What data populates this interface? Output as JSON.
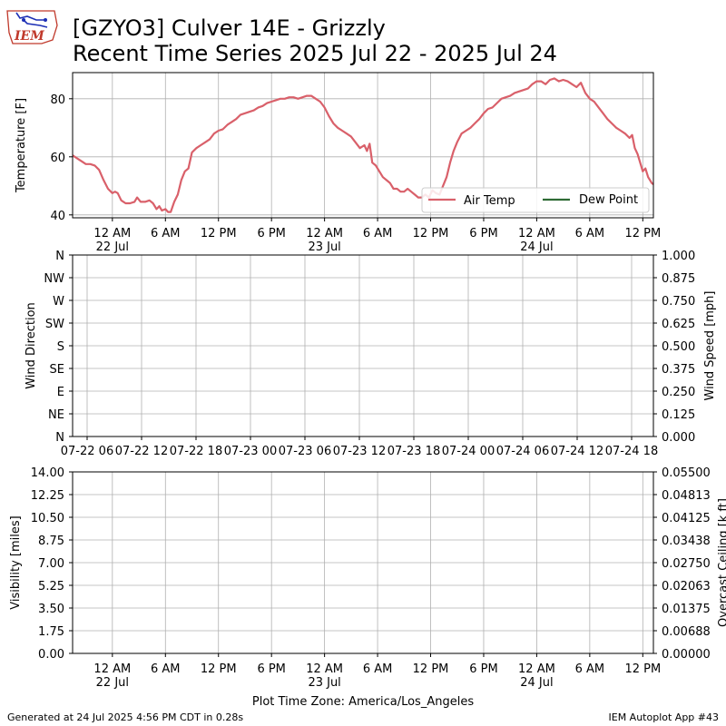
{
  "header": {
    "logo_text": "IEM",
    "title_line1": "[GZYO3] Culver 14E - Grizzly",
    "title_line2": "Recent Time Series 2025 Jul 22 - 2025 Jul 24"
  },
  "footer": {
    "generated": "Generated at 24 Jul 2025 4:56 PM CDT in 0.28s",
    "app": "IEM Autoplot App #43",
    "xlabel": "Plot Time Zone: America/Los_Angeles"
  },
  "colors": {
    "air_temp": "#d9606a",
    "dew_point": "#2e6b34",
    "ceiling_label": "#008000"
  },
  "chart_data": [
    {
      "type": "line",
      "panel": "temperature",
      "ylabel": "Temperature [F]",
      "ylim": [
        39,
        89
      ],
      "yticks": [
        40,
        60,
        80
      ],
      "xlim_hours": [
        -4.5,
        61.2
      ],
      "x_tick_labels": [
        {
          "hour": 0,
          "line1": "12 AM",
          "line2": "22 Jul"
        },
        {
          "hour": 6,
          "line1": "6 AM",
          "line2": ""
        },
        {
          "hour": 12,
          "line1": "12 PM",
          "line2": ""
        },
        {
          "hour": 18,
          "line1": "6 PM",
          "line2": ""
        },
        {
          "hour": 24,
          "line1": "12 AM",
          "line2": "23 Jul"
        },
        {
          "hour": 30,
          "line1": "6 AM",
          "line2": ""
        },
        {
          "hour": 36,
          "line1": "12 PM",
          "line2": ""
        },
        {
          "hour": 42,
          "line1": "6 PM",
          "line2": ""
        },
        {
          "hour": 48,
          "line1": "12 AM",
          "line2": "24 Jul"
        },
        {
          "hour": 54,
          "line1": "6 AM",
          "line2": ""
        },
        {
          "hour": 60,
          "line1": "12 PM",
          "line2": ""
        }
      ],
      "grid": true,
      "legend": "lower-right",
      "series": [
        {
          "name": "Air Temp",
          "points": [
            [
              -4.5,
              60.5
            ],
            [
              -4,
              59.5
            ],
            [
              -3.5,
              58.5
            ],
            [
              -3,
              57.5
            ],
            [
              -2.5,
              57.5
            ],
            [
              -2,
              57
            ],
            [
              -1.5,
              55.5
            ],
            [
              -1,
              52
            ],
            [
              -0.5,
              49
            ],
            [
              0,
              47.5
            ],
            [
              0.3,
              48
            ],
            [
              0.6,
              47.5
            ],
            [
              1,
              45
            ],
            [
              1.5,
              44
            ],
            [
              2,
              44
            ],
            [
              2.5,
              44.5
            ],
            [
              2.8,
              46
            ],
            [
              3.2,
              44.5
            ],
            [
              3.7,
              44.5
            ],
            [
              4.2,
              45
            ],
            [
              4.6,
              44
            ],
            [
              5,
              42
            ],
            [
              5.3,
              43
            ],
            [
              5.6,
              41.5
            ],
            [
              6,
              42
            ],
            [
              6.3,
              41
            ],
            [
              6.6,
              41
            ],
            [
              7,
              44.5
            ],
            [
              7.4,
              47
            ],
            [
              7.8,
              52
            ],
            [
              8.2,
              55
            ],
            [
              8.6,
              56
            ],
            [
              9,
              61.5
            ],
            [
              9.5,
              63
            ],
            [
              10,
              64
            ],
            [
              10.5,
              65
            ],
            [
              11,
              66
            ],
            [
              11.5,
              68
            ],
            [
              12,
              69
            ],
            [
              12.5,
              69.5
            ],
            [
              13,
              71
            ],
            [
              13.5,
              72
            ],
            [
              14,
              73
            ],
            [
              14.5,
              74.5
            ],
            [
              15,
              75
            ],
            [
              15.5,
              75.5
            ],
            [
              16,
              76
            ],
            [
              16.5,
              77
            ],
            [
              17,
              77.5
            ],
            [
              17.5,
              78.5
            ],
            [
              18,
              79
            ],
            [
              18.5,
              79.5
            ],
            [
              19,
              80
            ],
            [
              19.5,
              80
            ],
            [
              20,
              80.5
            ],
            [
              20.5,
              80.5
            ],
            [
              21,
              80
            ],
            [
              21.5,
              80.5
            ],
            [
              22,
              81
            ],
            [
              22.5,
              81
            ],
            [
              23,
              80
            ],
            [
              23.5,
              79
            ],
            [
              24,
              77
            ],
            [
              24.5,
              74
            ],
            [
              25,
              71.5
            ],
            [
              25.5,
              70
            ],
            [
              26,
              69
            ],
            [
              26.5,
              68
            ],
            [
              27,
              67
            ],
            [
              27.5,
              65
            ],
            [
              28,
              63
            ],
            [
              28.5,
              64
            ],
            [
              28.8,
              62
            ],
            [
              29.1,
              64.5
            ],
            [
              29.4,
              58
            ],
            [
              29.8,
              57
            ],
            [
              30.2,
              55
            ],
            [
              30.6,
              53
            ],
            [
              31,
              52
            ],
            [
              31.4,
              51
            ],
            [
              31.8,
              49
            ],
            [
              32.2,
              49
            ],
            [
              32.6,
              48
            ],
            [
              33,
              48
            ],
            [
              33.4,
              49
            ],
            [
              33.8,
              48
            ],
            [
              34.2,
              47
            ],
            [
              34.6,
              46
            ],
            [
              35,
              46
            ],
            [
              35.4,
              47
            ],
            [
              35.8,
              46
            ],
            [
              36.2,
              48.5
            ],
            [
              36.6,
              47.5
            ],
            [
              37,
              47
            ],
            [
              37.4,
              50
            ],
            [
              37.8,
              53
            ],
            [
              38.2,
              58
            ],
            [
              38.6,
              62
            ],
            [
              39,
              65
            ],
            [
              39.5,
              68
            ],
            [
              40,
              69
            ],
            [
              40.5,
              70
            ],
            [
              41,
              71.5
            ],
            [
              41.5,
              73
            ],
            [
              42,
              75
            ],
            [
              42.5,
              76.5
            ],
            [
              43,
              77
            ],
            [
              43.5,
              78.5
            ],
            [
              44,
              80
            ],
            [
              44.5,
              80.5
            ],
            [
              45,
              81
            ],
            [
              45.5,
              82
            ],
            [
              46,
              82.5
            ],
            [
              46.5,
              83
            ],
            [
              47,
              83.5
            ],
            [
              47.5,
              85
            ],
            [
              48,
              86
            ],
            [
              48.5,
              86
            ],
            [
              49,
              85
            ],
            [
              49.5,
              86.5
            ],
            [
              50,
              87
            ],
            [
              50.5,
              86
            ],
            [
              51,
              86.5
            ],
            [
              51.5,
              86
            ],
            [
              52,
              85
            ],
            [
              52.5,
              84
            ],
            [
              53,
              85.5
            ],
            [
              53.5,
              82
            ],
            [
              54,
              80
            ],
            [
              54.5,
              79
            ],
            [
              55,
              77
            ],
            [
              55.5,
              75
            ],
            [
              56,
              73
            ],
            [
              56.5,
              71.5
            ],
            [
              57,
              70
            ],
            [
              57.5,
              69
            ],
            [
              58,
              68
            ],
            [
              58.5,
              66.5
            ],
            [
              58.8,
              67.5
            ],
            [
              59.1,
              63
            ],
            [
              59.4,
              61
            ],
            [
              59.7,
              58
            ],
            [
              60,
              55
            ],
            [
              60.3,
              56
            ],
            [
              60.6,
              53
            ],
            [
              61,
              51
            ],
            [
              61.2,
              50.5
            ]
          ]
        },
        {
          "name": "Dew Point",
          "points": []
        }
      ]
    },
    {
      "type": "line",
      "panel": "wind",
      "ylabel": "Wind Direction",
      "y2label": "Wind Speed [mph]",
      "yticks": [
        "N",
        "NE",
        "E",
        "SE",
        "S",
        "SW",
        "W",
        "NW",
        "N"
      ],
      "y2ticks": [
        "0.000",
        "0.125",
        "0.250",
        "0.375",
        "0.500",
        "0.625",
        "0.750",
        "0.875",
        "1.000"
      ],
      "x_tick_labels": [
        "07-22 06",
        "07-22 12",
        "07-22 18",
        "07-23 00",
        "07-23 06",
        "07-23 12",
        "07-23 18",
        "07-24 00",
        "07-24 06",
        "07-24 12",
        "07-24 18"
      ],
      "grid": true,
      "series": []
    },
    {
      "type": "line",
      "panel": "visibility",
      "ylabel": "Visibility [miles]",
      "y2label": "Overcast Ceiling [k ft]",
      "yticks": [
        "0.00",
        "1.75",
        "3.50",
        "5.25",
        "7.00",
        "8.75",
        "10.50",
        "12.25",
        "14.00"
      ],
      "y2ticks": [
        "0.00000",
        "0.00688",
        "0.01375",
        "0.02063",
        "0.02750",
        "0.03438",
        "0.04125",
        "0.04813",
        "0.05500"
      ],
      "x_tick_labels": [
        {
          "line1": "12 AM",
          "line2": "22 Jul"
        },
        {
          "line1": "6 AM",
          "line2": ""
        },
        {
          "line1": "12 PM",
          "line2": ""
        },
        {
          "line1": "6 PM",
          "line2": ""
        },
        {
          "line1": "12 AM",
          "line2": "23 Jul"
        },
        {
          "line1": "6 AM",
          "line2": ""
        },
        {
          "line1": "12 PM",
          "line2": ""
        },
        {
          "line1": "6 PM",
          "line2": ""
        },
        {
          "line1": "12 AM",
          "line2": "24 Jul"
        },
        {
          "line1": "6 AM",
          "line2": ""
        },
        {
          "line1": "12 PM",
          "line2": ""
        }
      ],
      "grid": true,
      "series": []
    }
  ]
}
